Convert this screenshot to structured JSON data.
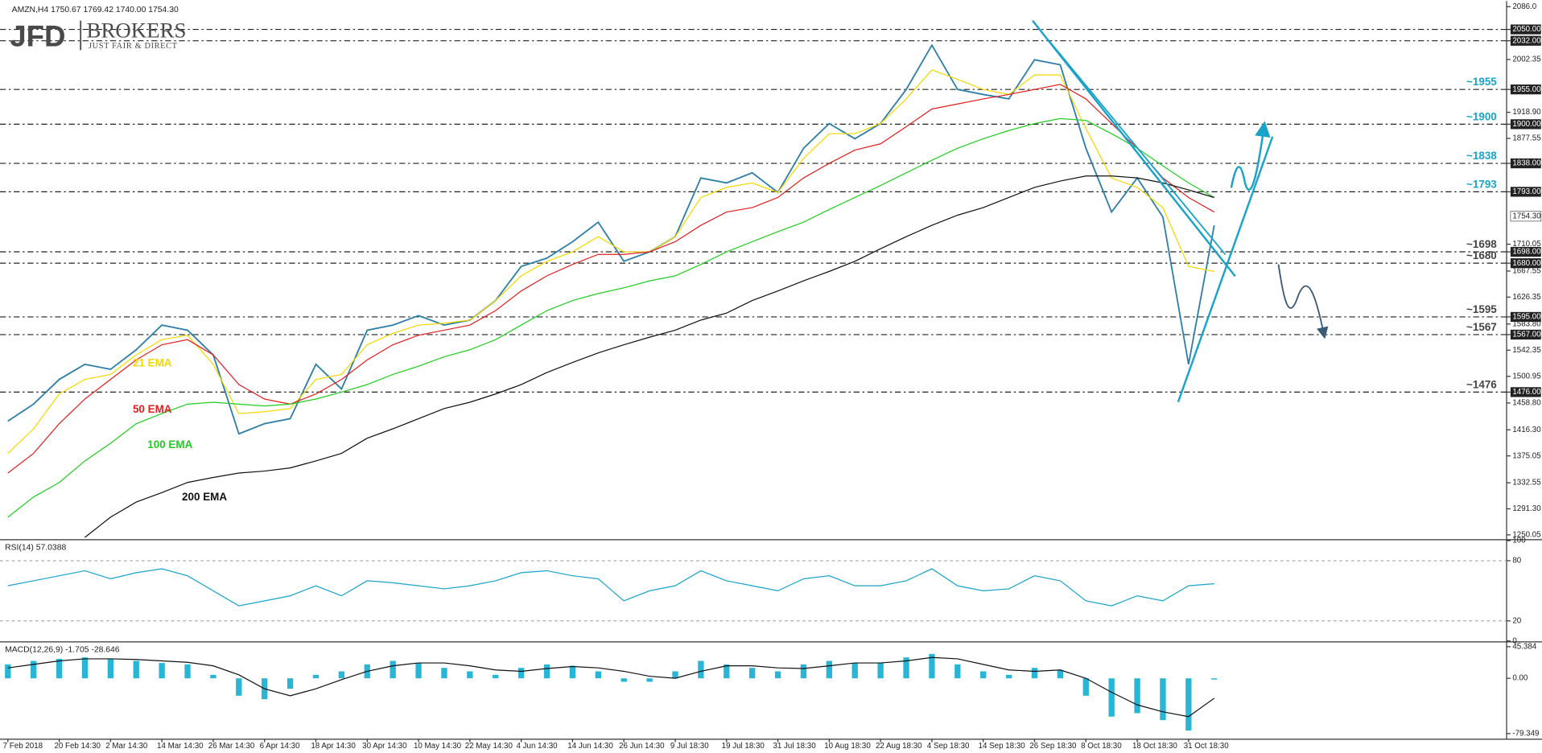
{
  "header": {
    "symbol_info": "AMZN,H4  1750.67 1769.42 1740.00 1754.30",
    "logo": "JFD",
    "brand": "BROKERS",
    "tagline": "JUST FAIR & DIRECT"
  },
  "chart_data": [
    {
      "type": "line",
      "title": "AMZN,H4",
      "categories": [
        "7 Feb 2018",
        null,
        "20 Feb 14:30",
        null,
        "2 Mar 14:30",
        null,
        "14 Mar 14:30",
        null,
        "26 Mar 14:30",
        null,
        "6 Apr 14:30",
        null,
        "18 Apr 14:30",
        null,
        "30 Apr 14:30",
        null,
        "10 May 14:30",
        null,
        "22 May 14:30",
        null,
        "4 Jun 14:30",
        null,
        "14 Jun 14:30",
        null,
        "26 Jun 14:30",
        null,
        "9 Jul 18:30",
        null,
        "19 Jul 18:30",
        null,
        "31 Jul 18:30",
        null,
        "10 Aug 18:30",
        null,
        "22 Aug 18:30",
        null,
        "4 Sep 18:30",
        null,
        "14 Sep 18:30",
        null,
        "26 Sep 18:30",
        null,
        "8 Oct 18:30",
        null,
        "18 Oct 18:30",
        null,
        "31 Oct 18:30",
        null
      ],
      "series": [
        {
          "color": "#2f7fa8",
          "values": [
            1430,
            1457,
            1496,
            1520,
            1512,
            1543,
            1582,
            1574,
            1535,
            1410,
            1426,
            1434,
            1520,
            1481,
            1574,
            1582,
            1597,
            1582,
            1590,
            1621,
            1675,
            1688,
            1714,
            1745,
            1683,
            1698,
            1722,
            1815,
            1807,
            1823,
            1792,
            1862,
            1901,
            1877,
            1901,
            1955,
            2025,
            1955,
            1947,
            1940,
            2002,
            1994,
            1862,
            1761,
            1815,
            1753,
            1520,
            1740
          ]
        },
        {
          "name": "21 EMA",
          "color": "#f5d800",
          "values": [
            1379,
            1418,
            1473,
            1496,
            1504,
            1535,
            1559,
            1566,
            1520,
            1442,
            1445,
            1450,
            1496,
            1504,
            1551,
            1569,
            1582,
            1585,
            1590,
            1621,
            1660,
            1683,
            1698,
            1722,
            1698,
            1698,
            1722,
            1784,
            1800,
            1807,
            1792,
            1846,
            1885,
            1885,
            1901,
            1940,
            1986,
            1971,
            1955,
            1947,
            1978,
            1978,
            1893,
            1815,
            1800,
            1768,
            1675,
            1667
          ]
        },
        {
          "name": "50 EMA",
          "color": "#e02020",
          "values": [
            1348,
            1379,
            1426,
            1465,
            1496,
            1527,
            1551,
            1559,
            1535,
            1488,
            1465,
            1457,
            1473,
            1496,
            1527,
            1551,
            1566,
            1574,
            1582,
            1605,
            1636,
            1660,
            1678,
            1694,
            1694,
            1698,
            1714,
            1740,
            1761,
            1768,
            1784,
            1815,
            1838,
            1859,
            1869,
            1896,
            1924,
            1932,
            1940,
            1947,
            1955,
            1963,
            1940,
            1901,
            1862,
            1815,
            1784,
            1761
          ]
        },
        {
          "name": "100 EMA",
          "color": "#22cc22",
          "values": [
            1278,
            1310,
            1333,
            1367,
            1395,
            1426,
            1442,
            1457,
            1460,
            1457,
            1454,
            1457,
            1465,
            1476,
            1488,
            1504,
            1517,
            1532,
            1543,
            1559,
            1582,
            1605,
            1621,
            1632,
            1641,
            1652,
            1660,
            1678,
            1698,
            1714,
            1730,
            1745,
            1765,
            1784,
            1803,
            1823,
            1843,
            1862,
            1877,
            1890,
            1901,
            1909,
            1906,
            1885,
            1862,
            1834,
            1807,
            1784
          ]
        },
        {
          "name": "200 EMA",
          "color": "#111111",
          "values": [
            null,
            null,
            null,
            1246,
            1278,
            1302,
            1317,
            1333,
            1341,
            1348,
            1351,
            1356,
            1367,
            1379,
            1403,
            1418,
            1434,
            1450,
            1460,
            1473,
            1488,
            1507,
            1523,
            1538,
            1551,
            1563,
            1574,
            1590,
            1601,
            1621,
            1636,
            1652,
            1667,
            1683,
            1703,
            1722,
            1740,
            1756,
            1768,
            1784,
            1800,
            1810,
            1818,
            1818,
            1815,
            1807,
            1796,
            1784
          ]
        }
      ],
      "ylim": [
        1244,
        2095
      ],
      "yticks": [
        {
          "value": 2086,
          "label": "2086.0"
        },
        {
          "value": 2050,
          "label": "2050.00"
        },
        {
          "value": 2032,
          "label": "2032.00"
        },
        2002.35,
        {
          "value": 1955,
          "label": "1955.00"
        },
        {
          "value": 1918.9,
          "label": "1918.90"
        },
        {
          "value": 1900,
          "label": "1900.00"
        },
        1877.55,
        {
          "value": 1838,
          "label": "1838.00"
        },
        {
          "value": 1793,
          "label": "1793.00"
        },
        1710.05,
        {
          "value": 1698,
          "label": "1698.00"
        },
        {
          "value": 1680,
          "label": "1680.00"
        },
        1667.55,
        1626.35,
        {
          "value": 1595,
          "label": "1595.00"
        },
        {
          "value": 1583.8,
          "label": "1583.80"
        },
        {
          "value": 1567,
          "label": "1567.00"
        },
        1542.35,
        1500.95,
        {
          "value": 1476,
          "label": "1476.00"
        },
        {
          "value": 1458.8,
          "label": "1458.80"
        },
        {
          "value": 1416.3,
          "label": "1416.30"
        },
        1375.05,
        1332.55,
        {
          "value": 1291.3,
          "label": "1291.30"
        },
        1250.05
      ],
      "current_price": {
        "value": 1754.3,
        "label": "1754.30"
      },
      "levels": [
        2050,
        2032,
        1955,
        1900,
        1838,
        1793,
        1698,
        1680,
        1595,
        1567,
        1476
      ],
      "annotations": [
        {
          "text": "~1955",
          "value": 1955,
          "color": "#1aa3c8"
        },
        {
          "text": "~1900",
          "value": 1900,
          "color": "#1aa3c8"
        },
        {
          "text": "~1838",
          "value": 1838,
          "color": "#1aa3c8"
        },
        {
          "text": "~1793",
          "value": 1793,
          "color": "#1aa3c8"
        },
        {
          "text": "~1698",
          "value": 1698,
          "color": "#444444"
        },
        {
          "text": "~1680",
          "value": 1680,
          "color": "#444444"
        },
        {
          "text": "~1595",
          "value": 1595,
          "color": "#444444"
        },
        {
          "text": "~1567",
          "value": 1567,
          "color": "#444444"
        },
        {
          "text": "~1476",
          "value": 1476,
          "color": "#444444"
        }
      ]
    },
    {
      "type": "line",
      "title": "RSI(14) 57.0388",
      "series": [
        {
          "color": "#1aa3c8",
          "values": [
            55,
            60,
            65,
            70,
            62,
            68,
            72,
            65,
            50,
            35,
            40,
            45,
            55,
            45,
            60,
            58,
            55,
            52,
            55,
            60,
            68,
            70,
            65,
            62,
            40,
            50,
            55,
            70,
            60,
            55,
            50,
            62,
            65,
            55,
            55,
            60,
            72,
            55,
            50,
            52,
            65,
            60,
            40,
            35,
            45,
            40,
            55,
            57.0388
          ]
        }
      ],
      "ylim": [
        0,
        100
      ],
      "yticks": [
        100,
        80,
        20,
        0
      ],
      "levels": [
        80,
        20
      ]
    },
    {
      "type": "bar",
      "title": "MACD(12,26,9) -1.705 -28.646",
      "series": [
        {
          "type": "bar",
          "color": "#29b6d6",
          "values": [
            20,
            25,
            28,
            30,
            28,
            25,
            22,
            20,
            5,
            -25,
            -30,
            -15,
            5,
            10,
            20,
            25,
            22,
            15,
            10,
            5,
            15,
            20,
            18,
            10,
            -5,
            -5,
            10,
            25,
            20,
            15,
            10,
            20,
            25,
            22,
            22,
            30,
            35,
            20,
            10,
            5,
            15,
            12,
            -25,
            -55,
            -50,
            -60,
            -75,
            -1.705
          ]
        },
        {
          "type": "line",
          "color": "#111111",
          "values": [
            15,
            20,
            25,
            28,
            28,
            27,
            25,
            23,
            18,
            5,
            -15,
            -25,
            -15,
            -2,
            10,
            18,
            22,
            22,
            18,
            12,
            10,
            14,
            17,
            15,
            10,
            3,
            0,
            10,
            18,
            18,
            15,
            14,
            18,
            22,
            22,
            25,
            30,
            28,
            20,
            12,
            10,
            12,
            0,
            -20,
            -38,
            -48,
            -55,
            -28.646
          ]
        }
      ],
      "ylim": [
        -86,
        48
      ],
      "yticks": [
        45.384,
        {
          "value": 0,
          "label": "0.00"
        },
        -79.349
      ]
    }
  ]
}
